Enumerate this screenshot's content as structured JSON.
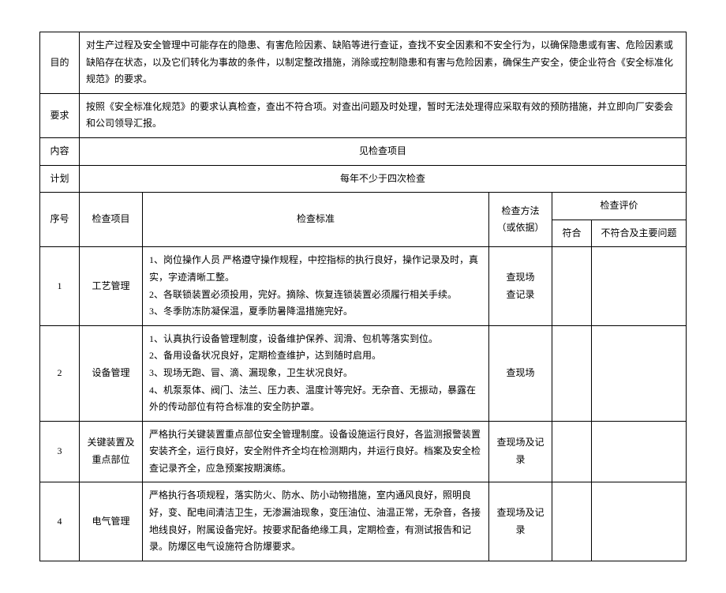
{
  "header": {
    "purpose_label": "目的",
    "purpose_text": "对生产过程及安全管理中可能存在的隐患、有害危险因素、缺陷等进行查证，查找不安全因素和不安全行为，以确保隐患或有害、危险因素或缺陷存在状态，以及它们转化为事故的条件，以制定整改措施，消除或控制隐患和有害与危险因素，确保生产安全，使企业符合《安全标准化规范》的要求。",
    "requirement_label": "要求",
    "requirement_text": "按照《安全标准化规范》的要求认真检查，查出不符合项。对查出问题及时处理，暂时无法处理得应采取有效的预防措施，并立即向厂安委会和公司领导汇报。",
    "content_label": "内容",
    "content_text": "见检查项目",
    "plan_label": "计划",
    "plan_text": "每年不少于四次检查"
  },
  "columns": {
    "seq": "序号",
    "item": "检查项目",
    "standard": "检查标准",
    "method": "检查方法（或依据）",
    "eval": "检查评价",
    "conform": "符合",
    "nonconform": "不符合及主要问题"
  },
  "rows": [
    {
      "seq": "1",
      "item": "工艺管理",
      "standard": "1、岗位操作人员 严格遵守操作规程，中控指标的执行良好，操作记录及时，真实，字迹清晰工整。\n2、各联锁装置必须投用，完好。摘除、恢复连锁装置必须履行相关手续。\n3、冬季防冻防凝保温，夏季防暑降温措施完好。",
      "method": "查现场\n查记录",
      "conform": "",
      "nonconform": ""
    },
    {
      "seq": "2",
      "item": "设备管理",
      "standard": "1、认真执行设备管理制度，设备维护保养、润滑、包机等落实到位。\n2、备用设备状况良好，定期检查维护，达到随时启用。\n3、现场无跑、冒、滴、漏现象，卫生状况良好。\n4、机泵泵体、阀门、法兰、压力表、温度计等完好。无杂音、无振动，暴露在外的传动部位有符合标准的安全防护罩。",
      "method": "查现场",
      "conform": "",
      "nonconform": ""
    },
    {
      "seq": "3",
      "item": "关键装置及重点部位",
      "standard": "严格执行关键装置重点部位安全管理制度。设备设施运行良好，各监测报警装置安装齐全，运行良好，安全附件齐全均在检测期内，并运行良好。档案及安全检查记录齐全，应急预案按期演练。",
      "method": "查现场及记录",
      "conform": "",
      "nonconform": ""
    },
    {
      "seq": "4",
      "item": "电气管理",
      "standard": "严格执行各项规程，落实防火、防水、防小动物措施，室内通风良好，照明良好，变、配电间清洁卫生，无渗漏油现象，变压油位、油温正常，无杂音，各接地线良好，附属设备完好。按要求配备绝缘工具，定期检查，有测试报告和记录。防爆区电气设施符合防爆要求。",
      "method": "查现场及记录",
      "conform": "",
      "nonconform": ""
    }
  ]
}
